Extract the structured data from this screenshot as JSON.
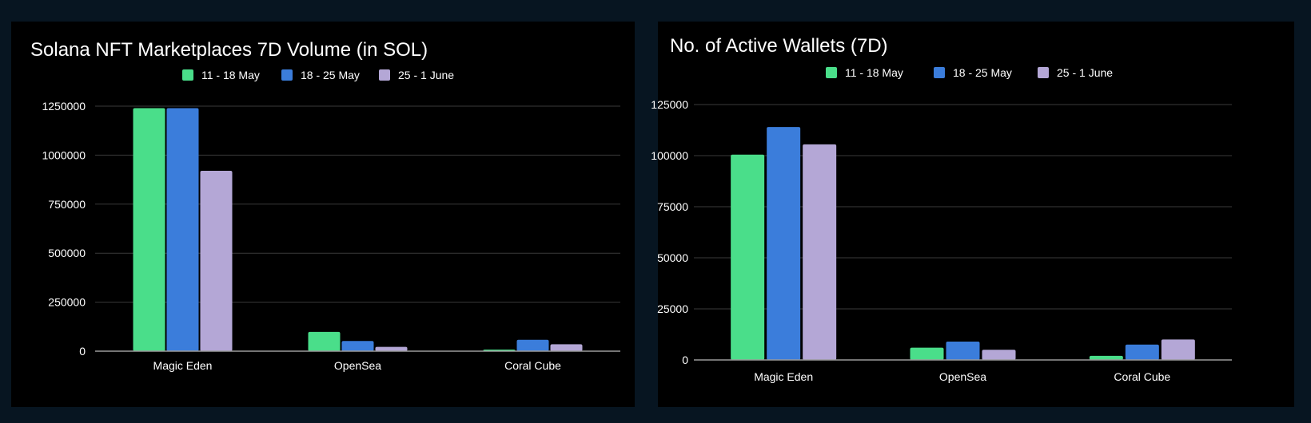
{
  "chart_data": [
    {
      "type": "bar",
      "title": "Solana NFT Marketplaces 7D Volume (in SOL)",
      "xlabel": "",
      "ylabel": "",
      "categories": [
        "Magic Eden",
        "OpenSea",
        "Coral Cube"
      ],
      "series": [
        {
          "name": "11 - 18 May",
          "color": "#4ade8a",
          "values": [
            1240000,
            98000,
            8000
          ]
        },
        {
          "name": "18 - 25 May",
          "color": "#3b7ddb",
          "values": [
            1240000,
            52000,
            58000
          ]
        },
        {
          "name": "25 - 1 June",
          "color": "#b4a7d6",
          "values": [
            920000,
            22000,
            35000
          ]
        }
      ],
      "yticks": [
        0,
        250000,
        500000,
        750000,
        1000000,
        1250000
      ],
      "ytick_labels": [
        "0",
        "250000",
        "500000",
        "750000",
        "1000000",
        "1250000"
      ],
      "ylim": [
        0,
        1250000
      ],
      "grid": true,
      "legend_position": "top"
    },
    {
      "type": "bar",
      "title": "No. of Active Wallets (7D)",
      "xlabel": "",
      "ylabel": "",
      "categories": [
        "Magic Eden",
        "OpenSea",
        "Coral Cube"
      ],
      "series": [
        {
          "name": "11 - 18 May",
          "color": "#4ade8a",
          "values": [
            100500,
            6000,
            2000
          ]
        },
        {
          "name": "18 - 25 May",
          "color": "#3b7ddb",
          "values": [
            114000,
            9000,
            7500
          ]
        },
        {
          "name": "25 - 1 June",
          "color": "#b4a7d6",
          "values": [
            105500,
            5000,
            10000
          ]
        }
      ],
      "yticks": [
        0,
        25000,
        50000,
        75000,
        100000,
        125000
      ],
      "ytick_labels": [
        "0",
        "25000",
        "50000",
        "75000",
        "100000",
        "125000"
      ],
      "ylim": [
        0,
        125000
      ],
      "grid": true,
      "legend_position": "top"
    }
  ]
}
